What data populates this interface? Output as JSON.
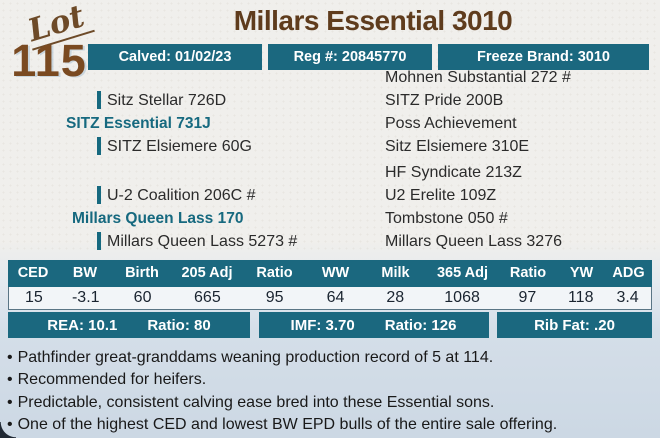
{
  "lot": {
    "label": "Lot",
    "number": "115"
  },
  "header": {
    "title": "Millars Essential 3010"
  },
  "badges": [
    {
      "label": "Calved: 01/02/23"
    },
    {
      "label": "Reg #: 20845770"
    },
    {
      "label": "Freeze Brand: 3010"
    }
  ],
  "pedigree": {
    "sire": {
      "name": "SITZ Essential 731J",
      "sire": "Sitz Stellar 726D",
      "dam": "SITZ Elsiemere 60G",
      "ancestors": [
        "Mohnen Substantial 272 #",
        "SITZ Pride 200B",
        "Poss Achievement",
        "Sitz Elsiemere 310E"
      ]
    },
    "dam": {
      "name": "Millars Queen Lass 170",
      "sire": "U-2 Coalition 206C #",
      "dam": "Millars Queen Lass 5273 #",
      "ancestors": [
        "HF Syndicate 213Z",
        "U2 Erelite 109Z",
        "Tombstone 050 #",
        "Millars Queen Lass 3276"
      ]
    }
  },
  "epd_table": {
    "columns": [
      "CED",
      "BW",
      "Birth",
      "205 Adj",
      "Ratio",
      "WW",
      "Milk",
      "365 Adj",
      "Ratio",
      "YW",
      "ADG"
    ],
    "values": [
      "15",
      "-3.1",
      "60",
      "665",
      "95",
      "64",
      "28",
      "1068",
      "97",
      "118",
      "3.4"
    ]
  },
  "carcass": {
    "segments": [
      [
        "REA: 10.1",
        "Ratio: 80"
      ],
      [
        "IMF: 3.70",
        "Ratio: 126"
      ],
      [
        "Rib Fat: .20"
      ]
    ]
  },
  "notes": {
    "bullet": "•",
    "items": [
      "Pathfinder great-granddams weaning production record of 5 at 114.",
      "Recommended for heifers.",
      "Predictable, consistent calving ease bred into these Essential sons.",
      "One of the highest CED and lowest BW EPD bulls of the entire sale offering."
    ]
  },
  "colors": {
    "teal": "#1b687f",
    "title_brown": "#5f3c1d",
    "lot_brown": "#7a4a21",
    "notes_background": "#ccd8e4",
    "paper_background": "#f0efec"
  }
}
